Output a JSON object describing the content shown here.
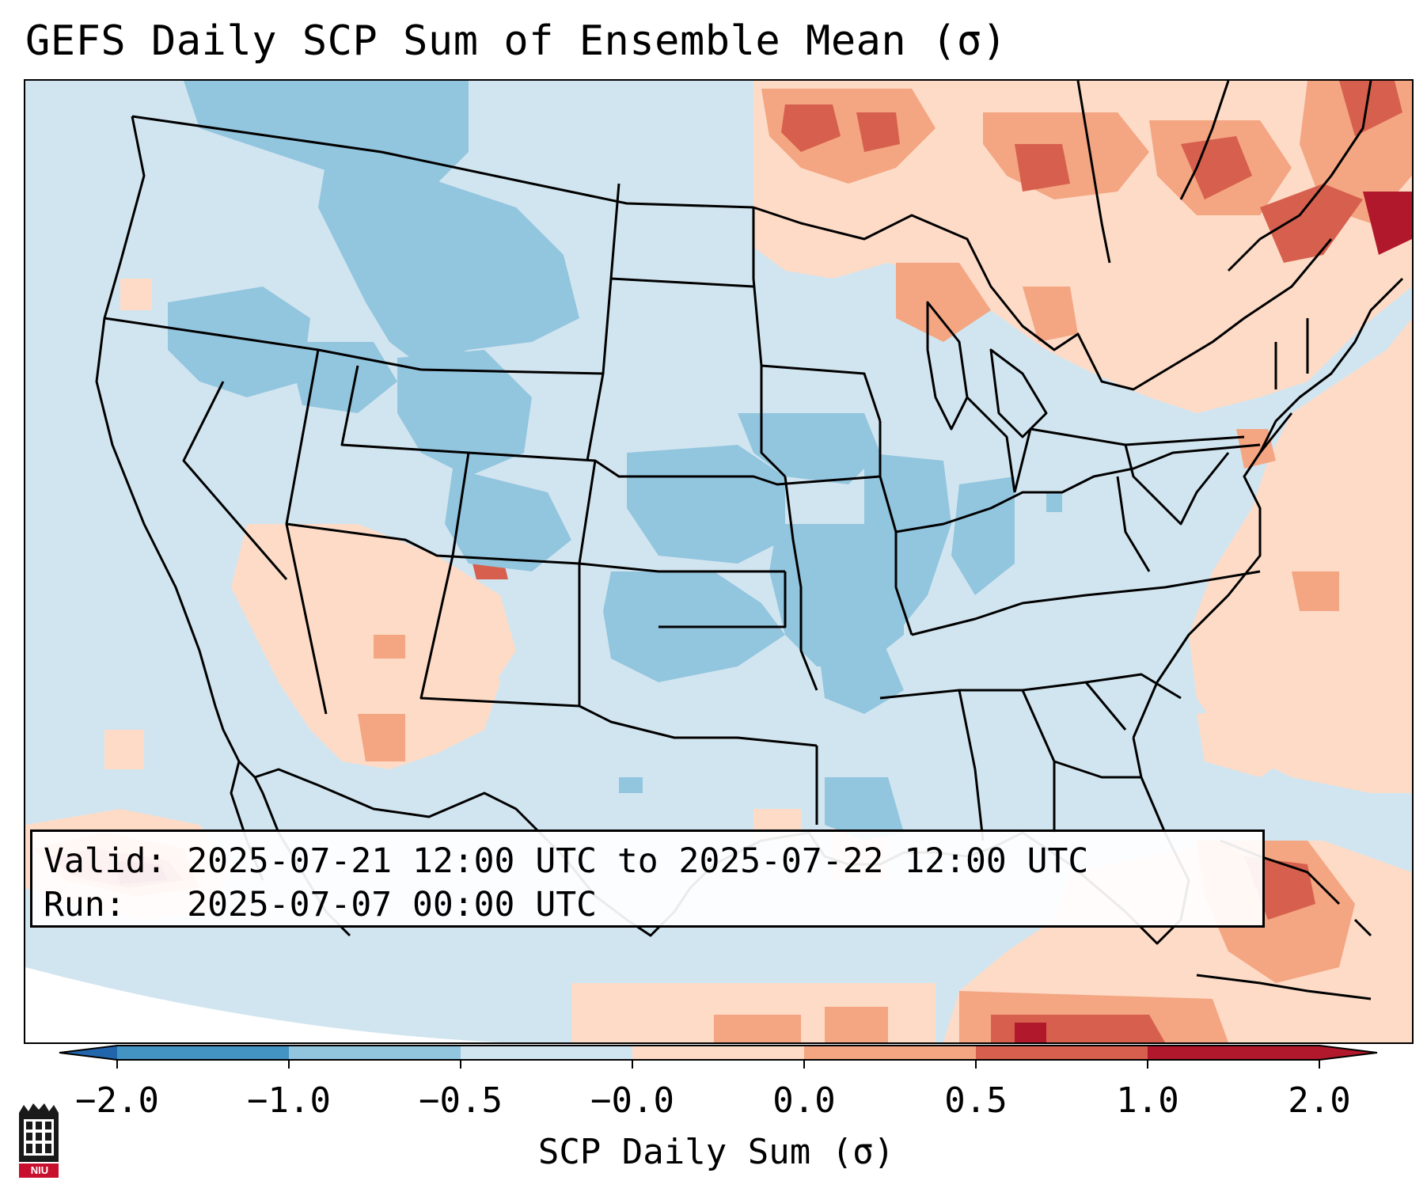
{
  "title": "GEFS Daily SCP Sum of Ensemble Mean (σ)",
  "info": {
    "valid_label": "Valid:",
    "valid_value": "2025-07-21 12:00 UTC to 2025-07-22 12:00 UTC",
    "run_label": "Run:",
    "run_value": "2025-07-07 00:00 UTC"
  },
  "colorbar": {
    "label": "SCP Daily Sum (σ)",
    "ticks": [
      "−2.0",
      "−1.0",
      "−0.5",
      "−0.0",
      "0.0",
      "0.5",
      "1.0",
      "2.0"
    ],
    "colors": [
      "#4393c3",
      "#92c5de",
      "#d1e5f0",
      "#fddbc7",
      "#f4a582",
      "#d6604d",
      "#b2182b"
    ],
    "under_color": "#2166ac",
    "over_color": "#b2182b"
  },
  "legend_colors": {
    "strong_negative": "#92c5de",
    "weak_negative": "#d1e5f0",
    "weak_positive": "#fddbc7",
    "moderate_positive": "#f4a582",
    "strong_positive": "#d6604d",
    "extreme_positive": "#b2182b"
  },
  "logo_text": "NIU"
}
